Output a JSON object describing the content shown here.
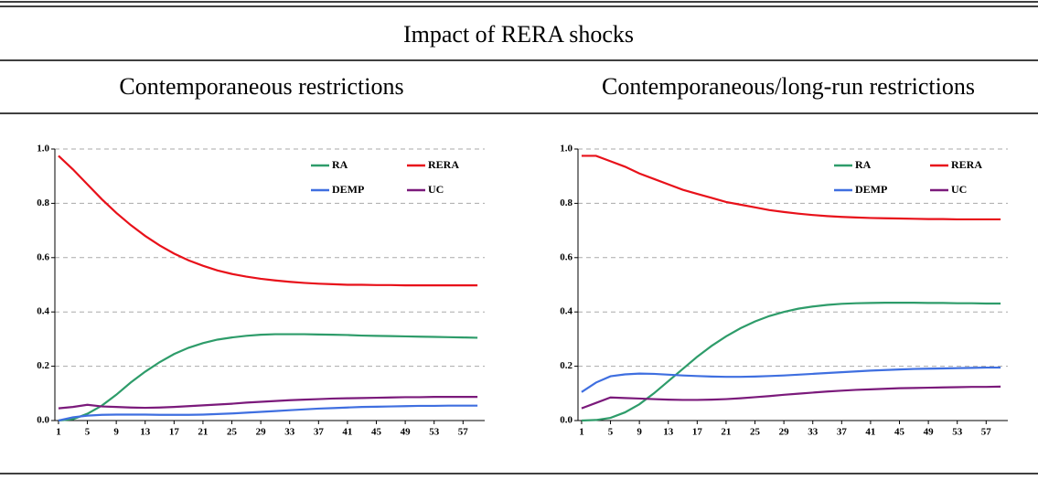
{
  "title": "Impact of RERA shocks",
  "chart_data": [
    {
      "type": "line",
      "title": "Contemporaneous restrictions",
      "x": [
        1,
        3,
        5,
        7,
        9,
        11,
        13,
        15,
        17,
        19,
        21,
        23,
        25,
        27,
        29,
        31,
        33,
        35,
        37,
        39,
        41,
        43,
        45,
        47,
        49,
        51,
        53,
        55,
        57,
        59
      ],
      "xlim": [
        0.5,
        60
      ],
      "xticks": [
        1,
        5,
        9,
        13,
        17,
        21,
        25,
        29,
        33,
        37,
        41,
        45,
        49,
        53,
        57
      ],
      "ylim": [
        0,
        1
      ],
      "yticks": [
        {
          "value": 0,
          "label": "0.0"
        },
        0.2,
        0.4,
        0.6,
        0.8,
        {
          "value": 1,
          "label": "1.0"
        }
      ],
      "grid": true,
      "legend": "upper right",
      "series": [
        {
          "name": "RA",
          "color": "#2e9c6a",
          "values": [
            0,
            0.005,
            0.025,
            0.055,
            0.095,
            0.14,
            0.18,
            0.215,
            0.245,
            0.268,
            0.285,
            0.298,
            0.306,
            0.312,
            0.316,
            0.318,
            0.318,
            0.318,
            0.317,
            0.316,
            0.315,
            0.313,
            0.312,
            0.311,
            0.31,
            0.309,
            0.308,
            0.307,
            0.306,
            0.305
          ]
        },
        {
          "name": "RERA",
          "color": "#e8111a",
          "values": [
            0.975,
            0.925,
            0.87,
            0.815,
            0.765,
            0.72,
            0.68,
            0.645,
            0.615,
            0.59,
            0.57,
            0.553,
            0.54,
            0.53,
            0.522,
            0.516,
            0.511,
            0.507,
            0.504,
            0.502,
            0.5,
            0.5,
            0.499,
            0.499,
            0.498,
            0.498,
            0.498,
            0.498,
            0.498,
            0.498
          ]
        },
        {
          "name": "DEMP",
          "color": "#3f6fe0",
          "values": [
            0,
            0.012,
            0.018,
            0.021,
            0.022,
            0.022,
            0.022,
            0.021,
            0.021,
            0.021,
            0.022,
            0.024,
            0.026,
            0.029,
            0.032,
            0.035,
            0.038,
            0.041,
            0.044,
            0.046,
            0.048,
            0.05,
            0.051,
            0.052,
            0.053,
            0.054,
            0.054,
            0.055,
            0.055,
            0.055
          ]
        },
        {
          "name": "UC",
          "color": "#7b1a7b",
          "values": [
            0.045,
            0.05,
            0.058,
            0.052,
            0.05,
            0.048,
            0.047,
            0.048,
            0.05,
            0.053,
            0.056,
            0.059,
            0.062,
            0.066,
            0.069,
            0.072,
            0.075,
            0.077,
            0.079,
            0.081,
            0.082,
            0.083,
            0.084,
            0.085,
            0.086,
            0.086,
            0.087,
            0.087,
            0.087,
            0.087
          ]
        }
      ]
    },
    {
      "type": "line",
      "title": "Contemporaneous/long-run restrictions",
      "x": [
        1,
        3,
        5,
        7,
        9,
        11,
        13,
        15,
        17,
        19,
        21,
        23,
        25,
        27,
        29,
        31,
        33,
        35,
        37,
        39,
        41,
        43,
        45,
        47,
        49,
        51,
        53,
        55,
        57,
        59
      ],
      "xlim": [
        0.5,
        60
      ],
      "xticks": [
        1,
        5,
        9,
        13,
        17,
        21,
        25,
        29,
        33,
        37,
        41,
        45,
        49,
        53,
        57
      ],
      "ylim": [
        0,
        1
      ],
      "yticks": [
        {
          "value": 0,
          "label": "0.0"
        },
        0.2,
        0.4,
        0.6,
        0.8,
        {
          "value": 1,
          "label": "1.0"
        }
      ],
      "grid": true,
      "legend": "upper right",
      "series": [
        {
          "name": "RA",
          "color": "#2e9c6a",
          "values": [
            0,
            0.002,
            0.01,
            0.03,
            0.06,
            0.1,
            0.145,
            0.19,
            0.235,
            0.275,
            0.31,
            0.34,
            0.365,
            0.385,
            0.4,
            0.412,
            0.42,
            0.426,
            0.43,
            0.432,
            0.433,
            0.434,
            0.434,
            0.434,
            0.433,
            0.433,
            0.432,
            0.432,
            0.431,
            0.431
          ]
        },
        {
          "name": "RERA",
          "color": "#e8111a",
          "values": [
            0.975,
            0.975,
            0.955,
            0.935,
            0.91,
            0.89,
            0.87,
            0.85,
            0.835,
            0.82,
            0.805,
            0.795,
            0.785,
            0.775,
            0.768,
            0.762,
            0.757,
            0.753,
            0.75,
            0.748,
            0.746,
            0.745,
            0.744,
            0.743,
            0.742,
            0.742,
            0.741,
            0.741,
            0.741,
            0.741
          ]
        },
        {
          "name": "DEMP",
          "color": "#3f6fe0",
          "values": [
            0.105,
            0.14,
            0.163,
            0.17,
            0.173,
            0.172,
            0.169,
            0.166,
            0.164,
            0.162,
            0.161,
            0.161,
            0.162,
            0.164,
            0.166,
            0.169,
            0.172,
            0.175,
            0.178,
            0.181,
            0.184,
            0.186,
            0.188,
            0.19,
            0.191,
            0.192,
            0.193,
            0.194,
            0.195,
            0.195
          ]
        },
        {
          "name": "UC",
          "color": "#7b1a7b",
          "values": [
            0.045,
            0.065,
            0.085,
            0.083,
            0.081,
            0.079,
            0.077,
            0.076,
            0.076,
            0.077,
            0.079,
            0.082,
            0.086,
            0.09,
            0.095,
            0.099,
            0.103,
            0.107,
            0.11,
            0.113,
            0.115,
            0.117,
            0.119,
            0.12,
            0.121,
            0.122,
            0.123,
            0.124,
            0.124,
            0.125
          ]
        }
      ]
    }
  ]
}
